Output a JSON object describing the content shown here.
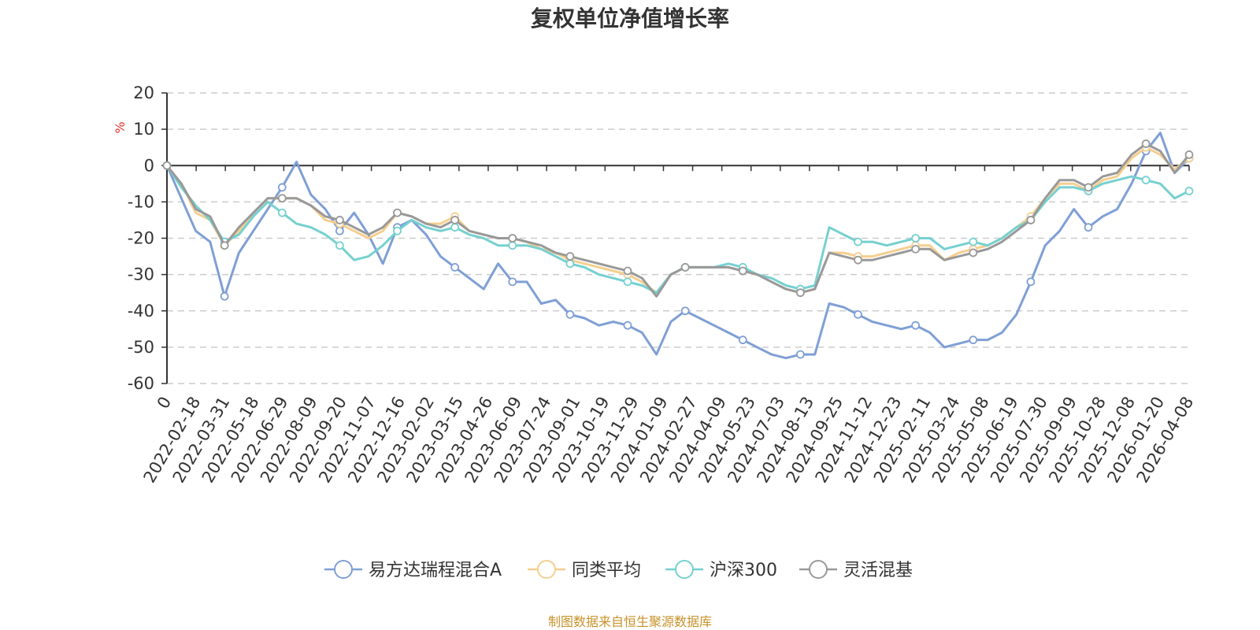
{
  "chart_data": {
    "type": "line",
    "title": "复权单位净值增长率",
    "ylabel": "%",
    "ylim": [
      -60,
      20
    ],
    "yticks": [
      20,
      10,
      0,
      -10,
      -20,
      -30,
      -40,
      -50,
      -60
    ],
    "grid": true,
    "legend_position": "bottom",
    "x_tick_labels": [
      "0",
      "2022-02-18",
      "2022-03-31",
      "2022-05-18",
      "2022-06-29",
      "2022-08-09",
      "2022-09-20",
      "2022-11-07",
      "2022-12-16",
      "2023-02-02",
      "2023-03-15",
      "2023-04-26",
      "2023-06-09",
      "2023-07-24",
      "2023-09-01",
      "2023-10-19",
      "2023-11-29",
      "2024-01-09",
      "2024-02-27",
      "2024-04-09",
      "2024-05-23",
      "2024-07-03",
      "2024-08-13",
      "2024-09-25",
      "2024-11-12",
      "2024-12-23",
      "2025-02-11",
      "2025-03-24",
      "2025-05-08",
      "2025-06-19",
      "2025-07-30",
      "2025-09-09",
      "2025-10-28",
      "2025-12-08",
      "2026-01-20",
      "2026-04-08"
    ],
    "x": [
      "0",
      "2022-02-18",
      "2022-03-11",
      "2022-03-31",
      "2022-04-25",
      "2022-05-18",
      "2022-06-08",
      "2022-06-29",
      "2022-07-19",
      "2022-08-09",
      "2022-08-29",
      "2022-09-20",
      "2022-10-17",
      "2022-11-07",
      "2022-11-25",
      "2022-12-16",
      "2023-01-06",
      "2023-02-02",
      "2023-02-22",
      "2023-03-15",
      "2023-04-04",
      "2023-04-26",
      "2023-05-18",
      "2023-06-09",
      "2023-07-03",
      "2023-07-24",
      "2023-08-11",
      "2023-09-01",
      "2023-09-22",
      "2023-10-19",
      "2023-11-08",
      "2023-11-29",
      "2023-12-19",
      "2024-01-09",
      "2024-01-29",
      "2024-02-27",
      "2024-03-19",
      "2024-04-09",
      "2024-04-30",
      "2024-05-23",
      "2024-06-13",
      "2024-07-03",
      "2024-07-23",
      "2024-08-13",
      "2024-09-02",
      "2024-09-25",
      "2024-10-18",
      "2024-11-12",
      "2024-12-03",
      "2024-12-23",
      "2025-01-14",
      "2025-02-11",
      "2025-03-04",
      "2025-03-24",
      "2025-04-14",
      "2025-05-08",
      "2025-05-29",
      "2025-06-19",
      "2025-07-09",
      "2025-07-30",
      "2025-08-19",
      "2025-09-09",
      "2025-09-30",
      "2025-10-28",
      "2025-11-17",
      "2025-12-08",
      "2025-12-26",
      "2026-01-20",
      "2026-02-10",
      "2026-03-05",
      "2026-03-20",
      "2026-04-08"
    ],
    "series": [
      {
        "name": "易方达瑞程混合A",
        "color": "#7f9fd5",
        "values": [
          0,
          -9,
          -18,
          -21,
          -36,
          -24,
          -18,
          -12,
          -6,
          1,
          -8,
          -12,
          -18,
          -13,
          -19,
          -27,
          -17,
          -15,
          -19,
          -25,
          -28,
          -31,
          -34,
          -27,
          -32,
          -32,
          -38,
          -37,
          -41,
          -42,
          -44,
          -43,
          -44,
          -46,
          -52,
          -43,
          -40,
          -42,
          -44,
          -46,
          -48,
          -50,
          -52,
          -53,
          -52,
          -52,
          -38,
          -39,
          -41,
          -43,
          -44,
          -45,
          -44,
          -46,
          -50,
          -49,
          -48,
          -48,
          -46,
          -41,
          -32,
          -22,
          -18,
          -12,
          -17,
          -14,
          -12,
          -5,
          4,
          9,
          -2,
          2
        ]
      },
      {
        "name": "同类平均",
        "color": "#f5cf8f",
        "values": [
          0,
          -5,
          -13,
          -15,
          -22,
          -18,
          -13,
          -9,
          -9,
          -9,
          -11,
          -15,
          -16,
          -18,
          -20,
          -18,
          -13,
          -14,
          -16,
          -16,
          -14,
          -18,
          -19,
          -20,
          -20,
          -21,
          -23,
          -24,
          -26,
          -27,
          -28,
          -29,
          -30,
          -32,
          -35,
          -30,
          -28,
          -28,
          -28,
          -28,
          -29,
          -30,
          -32,
          -34,
          -35,
          -34,
          -24,
          -24,
          -25,
          -25,
          -24,
          -23,
          -22,
          -22,
          -26,
          -24,
          -23,
          -22,
          -20,
          -17,
          -14,
          -9,
          -5,
          -5,
          -7,
          -4,
          -3,
          2,
          5,
          3,
          -1,
          2
        ]
      },
      {
        "name": "沪深300",
        "color": "#76d0d0",
        "values": [
          0,
          -6,
          -11,
          -15,
          -21,
          -19,
          -14,
          -10,
          -13,
          -16,
          -17,
          -19,
          -22,
          -26,
          -25,
          -22,
          -18,
          -15,
          -17,
          -18,
          -17,
          -19,
          -20,
          -22,
          -22,
          -22,
          -23,
          -25,
          -27,
          -28,
          -30,
          -31,
          -32,
          -33,
          -35,
          -30,
          -28,
          -28,
          -28,
          -27,
          -28,
          -30,
          -31,
          -33,
          -34,
          -33,
          -17,
          -19,
          -21,
          -21,
          -22,
          -21,
          -20,
          -20,
          -23,
          -22,
          -21,
          -22,
          -20,
          -17,
          -15,
          -10,
          -6,
          -6,
          -7,
          -5,
          -4,
          -3,
          -4,
          -5,
          -9,
          -7
        ]
      },
      {
        "name": "灵活混基",
        "color": "#999999",
        "values": [
          0,
          -5,
          -12,
          -14,
          -22,
          -17,
          -13,
          -9,
          -9,
          -9,
          -11,
          -14,
          -15,
          -17,
          -19,
          -17,
          -13,
          -14,
          -16,
          -17,
          -15,
          -18,
          -19,
          -20,
          -20,
          -21,
          -22,
          -24,
          -25,
          -26,
          -27,
          -28,
          -29,
          -31,
          -36,
          -30,
          -28,
          -28,
          -28,
          -28,
          -29,
          -30,
          -32,
          -34,
          -35,
          -34,
          -24,
          -25,
          -26,
          -26,
          -25,
          -24,
          -23,
          -23,
          -26,
          -25,
          -24,
          -23,
          -21,
          -18,
          -15,
          -9,
          -4,
          -4,
          -6,
          -3,
          -2,
          3,
          6,
          4,
          -2,
          3
        ]
      }
    ]
  },
  "source_text": "制图数据来自恒生聚源数据库"
}
